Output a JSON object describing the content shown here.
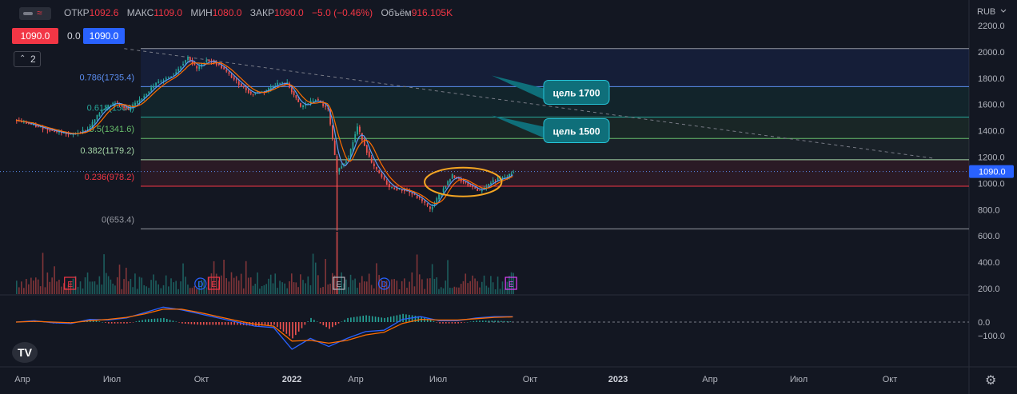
{
  "header": {
    "open_label": "ОТКР",
    "open_value": "1092.6",
    "high_label": "МАКС",
    "high_value": "1109.0",
    "low_label": "МИН",
    "low_value": "1080.0",
    "close_label": "ЗАКР",
    "close_value": "1090.0",
    "change": "−5.0 (−0.46%)",
    "volume_label": "Объём",
    "volume_value": "916.105K",
    "toggle_glyph": "≈"
  },
  "trade_panel": {
    "sell": "1090.0",
    "spread": "0.0",
    "buy": "1090.0"
  },
  "collapse_button": {
    "chevron": "⌃",
    "count": "2"
  },
  "currency": "RUB",
  "logo_text": "TV",
  "colors": {
    "background": "#131722",
    "up": "#26a69a",
    "down": "#ef5350",
    "fib_786": "#2962ff",
    "fib_618": "#089981",
    "fib_5": "#4caf50",
    "fib_382": "#81c784",
    "fib_236": "#f23645",
    "fib_0": "#787b86",
    "target_box": "#0f6f7a",
    "highlight": "#f5a623",
    "macd": "#2962ff",
    "signal": "#ff6d00"
  },
  "chart_data": {
    "type": "candlestick",
    "price_axis": {
      "ticks": [
        200,
        400,
        600,
        800,
        1000,
        1200,
        1400,
        1600,
        1800,
        2000,
        2200
      ],
      "range": [
        140,
        2260
      ]
    },
    "time_axis": {
      "labels": [
        "Апр",
        "Июл",
        "Окт",
        "2022",
        "Апр",
        "Июл",
        "Окт",
        "2023",
        "Апр",
        "Июл",
        "Окт"
      ]
    },
    "last_price": "1090.0",
    "fib_levels": [
      {
        "ratio": "0.786",
        "label": "0.786(1735.4)",
        "price": 1735.4,
        "color": "#5b8def"
      },
      {
        "ratio": "0.618",
        "label": "0.618(1504)",
        "price": 1504,
        "color": "#26a69a"
      },
      {
        "ratio": "0.5",
        "label": "0.5(1341.6)",
        "price": 1341.6,
        "color": "#66bb6a"
      },
      {
        "ratio": "0.382",
        "label": "0.382(1179.2)",
        "price": 1179.2,
        "color": "#a5d6a7"
      },
      {
        "ratio": "0.236",
        "label": "0.236(978.2)",
        "price": 978.2,
        "color": "#f23645"
      },
      {
        "ratio": "0",
        "label": "0(653.4)",
        "price": 653.4,
        "color": "#9598a1"
      }
    ],
    "fib_top_price": 2025,
    "targets": [
      {
        "label": "цель 1700",
        "price": 1735
      },
      {
        "label": "цель 1500",
        "price": 1504
      }
    ],
    "trendline": {
      "from": [
        "2021-07-01",
        2025
      ],
      "to": [
        "2023-12-31",
        1190
      ]
    },
    "close_series": [
      [
        "2021-03-01",
        1480
      ],
      [
        "2021-03-20",
        1440
      ],
      [
        "2021-04-10",
        1400
      ],
      [
        "2021-05-01",
        1370
      ],
      [
        "2021-05-20",
        1410
      ],
      [
        "2021-06-05",
        1560
      ],
      [
        "2021-06-20",
        1620
      ],
      [
        "2021-07-05",
        1560
      ],
      [
        "2021-07-20",
        1650
      ],
      [
        "2021-08-05",
        1760
      ],
      [
        "2021-08-25",
        1830
      ],
      [
        "2021-09-10",
        1960
      ],
      [
        "2021-09-20",
        1870
      ],
      [
        "2021-10-01",
        1940
      ],
      [
        "2021-10-15",
        1900
      ],
      [
        "2021-11-01",
        1790
      ],
      [
        "2021-11-20",
        1680
      ],
      [
        "2021-12-05",
        1700
      ],
      [
        "2021-12-20",
        1760
      ],
      [
        "2021-12-31",
        1760
      ],
      [
        "2022-01-15",
        1580
      ],
      [
        "2022-02-01",
        1640
      ],
      [
        "2022-02-15",
        1560
      ],
      [
        "2022-02-25",
        1090
      ],
      [
        "2022-03-10",
        1200
      ],
      [
        "2022-03-20",
        1430
      ],
      [
        "2022-04-05",
        1150
      ],
      [
        "2022-04-25",
        970
      ],
      [
        "2022-05-15",
        940
      ],
      [
        "2022-06-01",
        870
      ],
      [
        "2022-06-10",
        800
      ],
      [
        "2022-06-25",
        960
      ],
      [
        "2022-07-05",
        1060
      ],
      [
        "2022-07-20",
        1000
      ],
      [
        "2022-08-05",
        940
      ],
      [
        "2022-08-20",
        1020
      ],
      [
        "2022-09-05",
        1050
      ],
      [
        "2022-09-12",
        1090
      ]
    ],
    "volume_spike_date": "2022-02-25",
    "event_markers": [
      {
        "label": "E",
        "date": "2021-05-01"
      },
      {
        "label": "D",
        "date": "2021-09-25"
      },
      {
        "label": "E",
        "date": "2021-10-10"
      },
      {
        "label": "E",
        "date": "2022-02-28"
      },
      {
        "label": "D",
        "date": "2022-04-20"
      },
      {
        "label": "E",
        "date": "2022-09-10"
      }
    ],
    "macd": {
      "ticks": [
        "0.0",
        "−100.0"
      ],
      "macd_values": [
        0,
        10,
        -5,
        -10,
        20,
        15,
        30,
        70,
        110,
        90,
        60,
        30,
        0,
        -30,
        -40,
        -200,
        -120,
        -180,
        -120,
        -70,
        -60,
        20,
        40,
        10,
        10,
        30,
        40,
        40
      ],
      "signal_values": [
        0,
        5,
        0,
        -5,
        10,
        20,
        35,
        60,
        95,
        95,
        70,
        40,
        10,
        -15,
        -30,
        -140,
        -135,
        -155,
        -135,
        -95,
        -75,
        -10,
        20,
        15,
        15,
        25,
        35,
        38
      ]
    },
    "highlight_ellipse": {
      "from": "2022-06-10",
      "to": "2022-08-25"
    }
  }
}
